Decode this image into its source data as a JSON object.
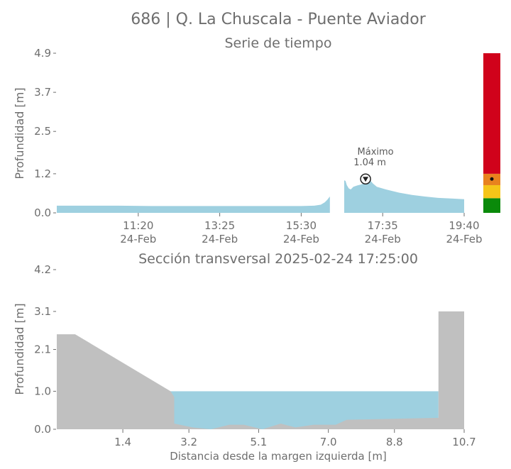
{
  "title": "686 | Q. La Chuscala - Puente Aviador",
  "colors": {
    "water": "#9ed0e0",
    "terrain": "#c0c0c0",
    "text": "#6e6e6e",
    "alert_red": "#d0021b",
    "alert_orange": "#e8821e",
    "alert_yellow": "#f5c518",
    "alert_green": "#0a8a0a"
  },
  "chart_data": [
    {
      "type": "area",
      "title": "Serie de tiempo",
      "xlabel": "",
      "ylabel": "Profundidad [m]",
      "ylim": [
        0,
        4.9
      ],
      "yticks": [
        "0.0",
        "1.2",
        "2.5",
        "3.7",
        "4.9"
      ],
      "xticks": [
        {
          "time": "11:20",
          "date": "24-Feb"
        },
        {
          "time": "13:25",
          "date": "24-Feb"
        },
        {
          "time": "15:30",
          "date": "24-Feb"
        },
        {
          "time": "17:35",
          "date": "24-Feb"
        },
        {
          "time": "19:40",
          "date": "24-Feb"
        }
      ],
      "x_range": [
        "09:15",
        "19:40"
      ],
      "x_units": "minutes since 00:00, 24-Feb",
      "series": [
        {
          "points": [
            [
              555,
              0.22
            ],
            [
              600,
              0.22
            ],
            [
              650,
              0.22
            ],
            [
              700,
              0.21
            ],
            [
              760,
              0.21
            ],
            [
              820,
              0.21
            ],
            [
              880,
              0.21
            ],
            [
              930,
              0.21
            ],
            [
              950,
              0.22
            ],
            [
              960,
              0.25
            ],
            [
              966,
              0.32
            ],
            [
              970,
              0.4
            ],
            [
              973,
              0.48
            ],
            [
              974,
              0.5
            ]
          ]
        },
        {
          "points": [
            [
              996,
              1.0
            ],
            [
              998,
              0.98
            ],
            [
              1000,
              0.85
            ],
            [
              1003,
              0.75
            ],
            [
              1006,
              0.72
            ],
            [
              1010,
              0.8
            ],
            [
              1016,
              0.84
            ],
            [
              1022,
              0.87
            ],
            [
              1028,
              0.92
            ],
            [
              1032,
              1.04
            ],
            [
              1036,
              1.0
            ],
            [
              1040,
              0.9
            ],
            [
              1046,
              0.8
            ],
            [
              1060,
              0.72
            ],
            [
              1080,
              0.62
            ],
            [
              1100,
              0.55
            ],
            [
              1120,
              0.5
            ],
            [
              1140,
              0.46
            ],
            [
              1160,
              0.44
            ],
            [
              1180,
              0.42
            ]
          ]
        }
      ],
      "annotation": {
        "label": "Máximo",
        "value_text": "1.04 m",
        "x": 1032,
        "y": 1.04
      },
      "alert_levels": {
        "thresholds": [
          0.45,
          0.85,
          1.2,
          4.9
        ],
        "current": 1.04
      }
    },
    {
      "type": "area",
      "title": "Sección transversal 2025-02-24 17:25:00",
      "xlabel": "Distancia desde la margen izquierda [m]",
      "ylabel": "Profundidad [m]",
      "xlim": [
        -0.4,
        10.7
      ],
      "ylim": [
        0,
        4.2
      ],
      "xticks": [
        "1.4",
        "3.2",
        "5.1",
        "7.0",
        "8.8",
        "10.7"
      ],
      "yticks": [
        "0.0",
        "1.0",
        "2.1",
        "3.1",
        "4.2"
      ],
      "water_level": 1.0,
      "water_extent": [
        2.7,
        10.0
      ],
      "terrain_profile": [
        [
          -0.4,
          2.5
        ],
        [
          0.1,
          2.5
        ],
        [
          2.7,
          1.0
        ],
        [
          2.8,
          0.85
        ],
        [
          2.8,
          0.15
        ],
        [
          3.3,
          0.05
        ],
        [
          3.8,
          0.0
        ],
        [
          4.3,
          0.12
        ],
        [
          4.7,
          0.12
        ],
        [
          5.2,
          0.0
        ],
        [
          5.7,
          0.15
        ],
        [
          6.1,
          0.05
        ],
        [
          6.6,
          0.12
        ],
        [
          7.2,
          0.12
        ],
        [
          7.5,
          0.25
        ],
        [
          10.0,
          0.3
        ],
        [
          10.0,
          3.1
        ],
        [
          10.7,
          3.1
        ],
        [
          10.7,
          0.0
        ]
      ]
    }
  ]
}
